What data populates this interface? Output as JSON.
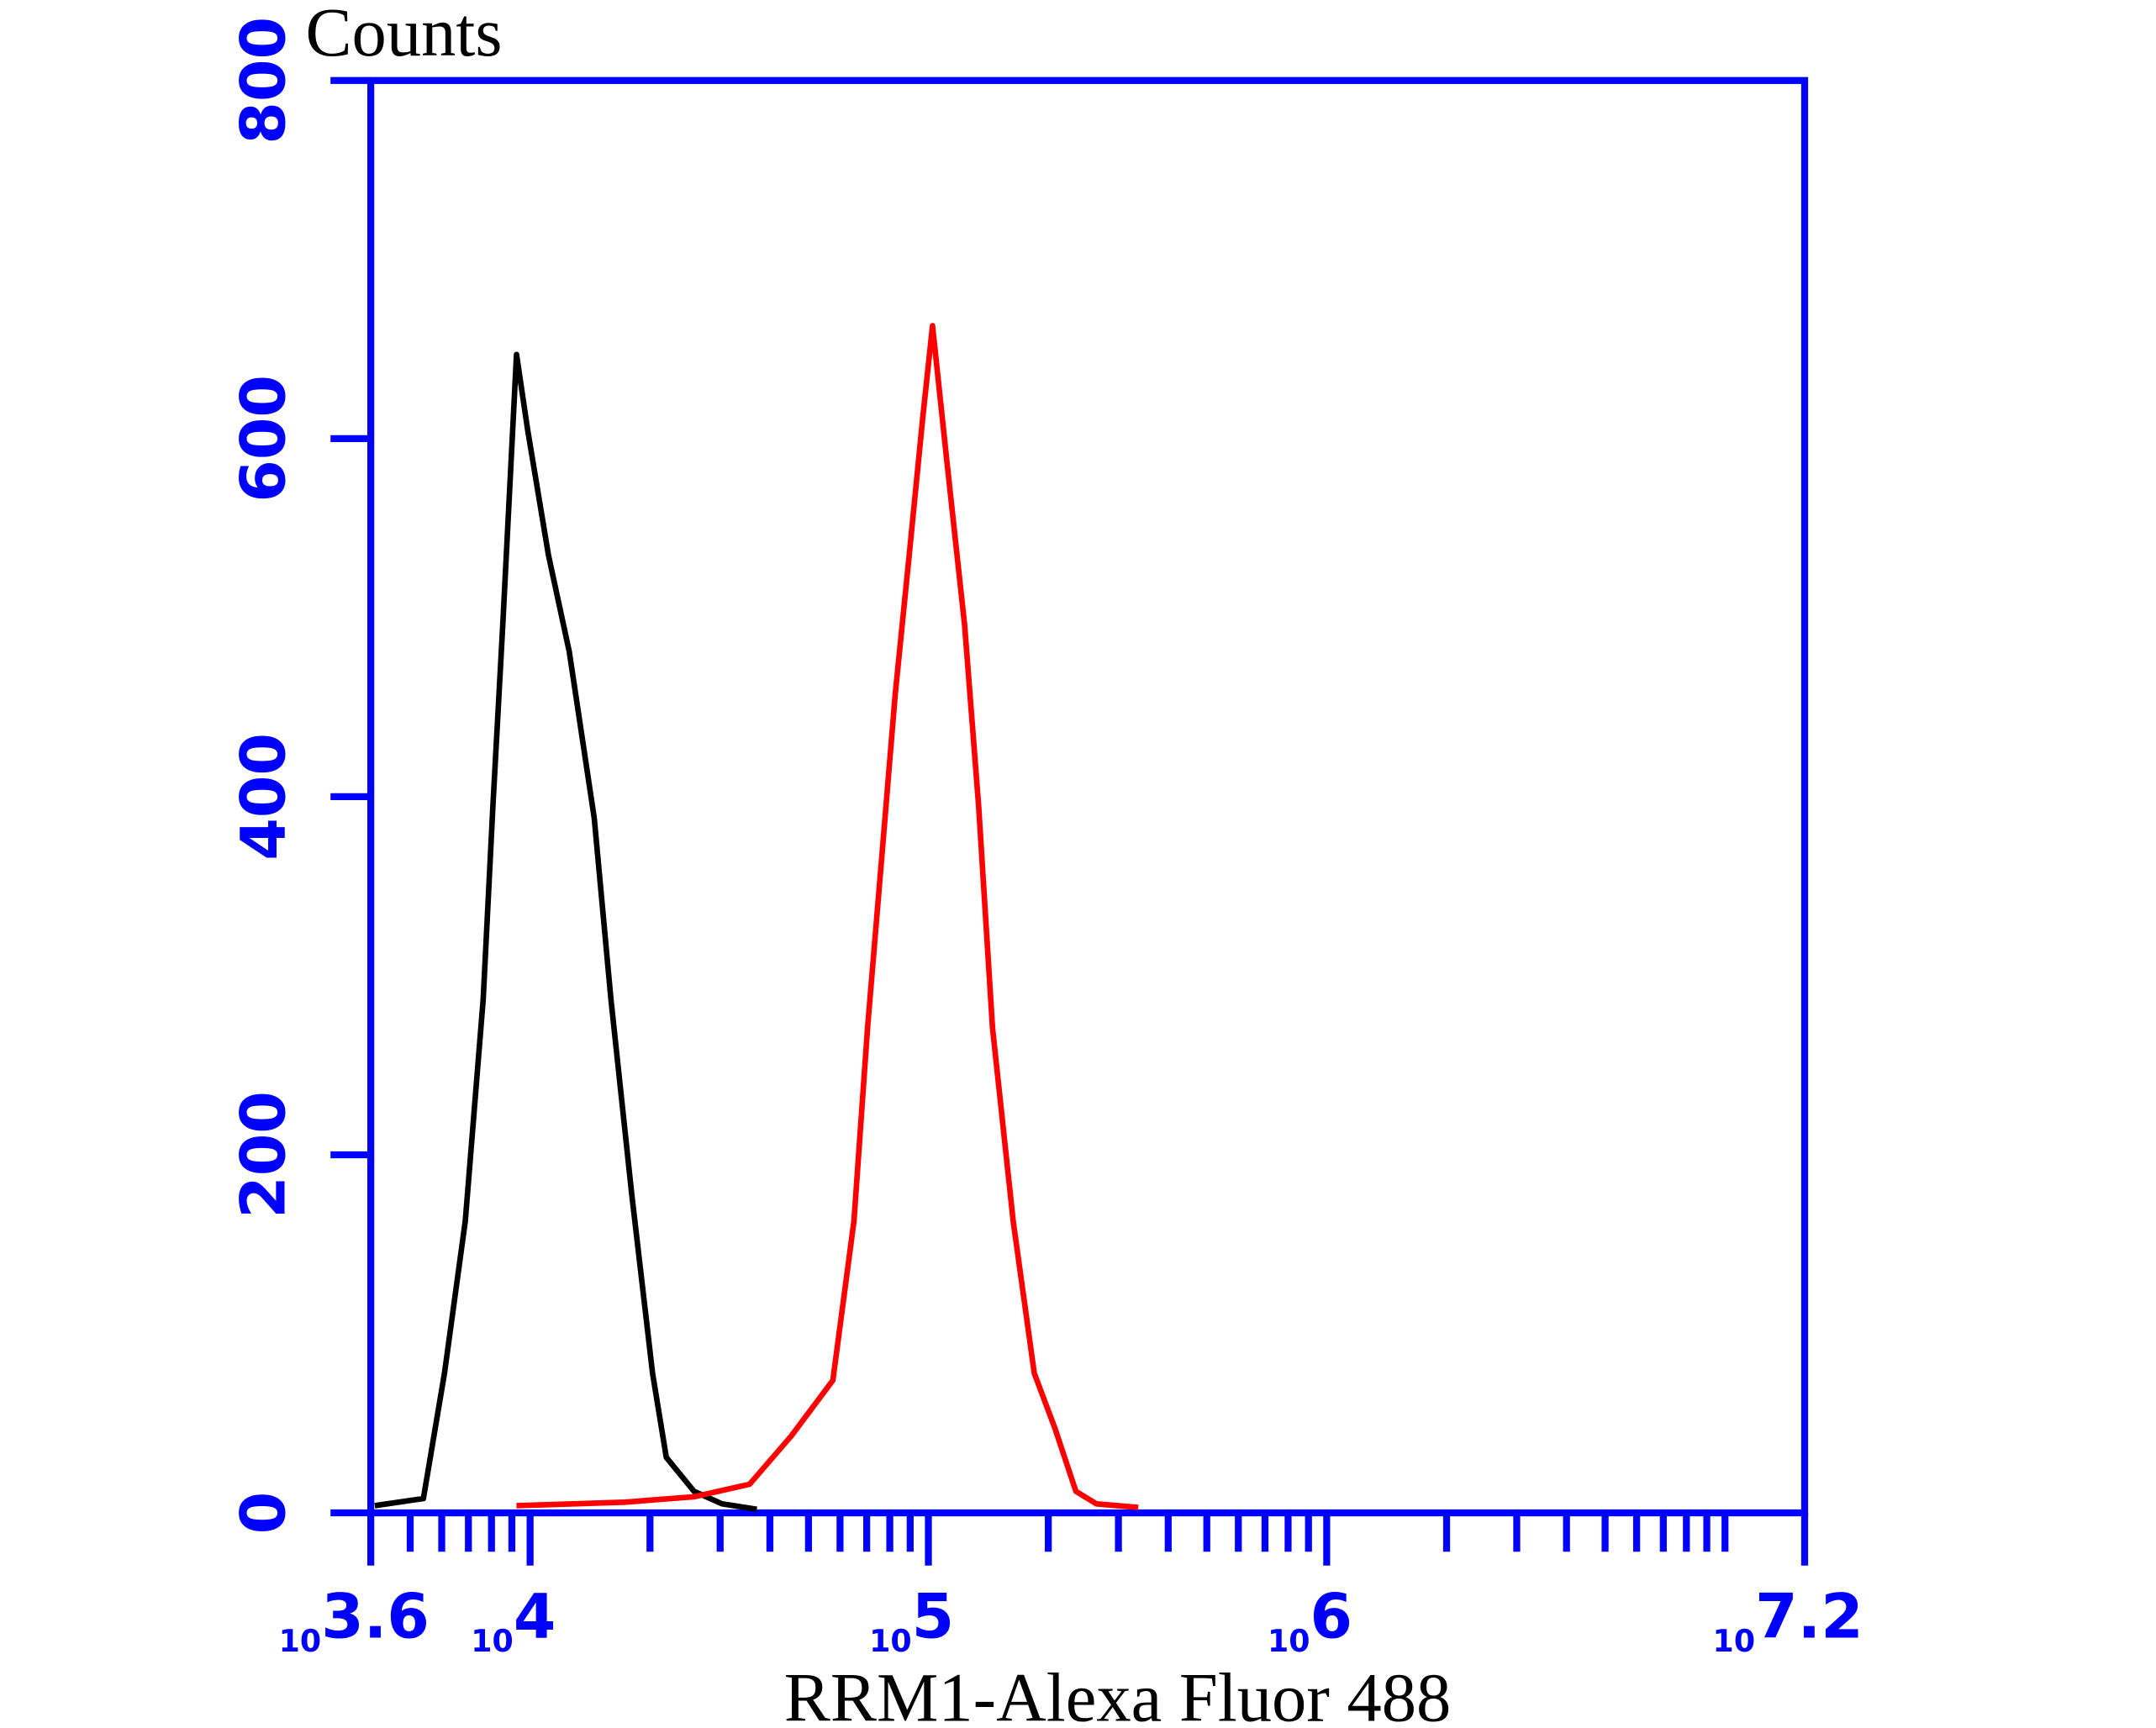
{
  "chart_data": {
    "type": "line",
    "y_label": "Counts",
    "x_label": "RRM1-Alexa Fluor 488",
    "x_log_scale": true,
    "xlim": [
      3981.07,
      15848932
    ],
    "xticks": [
      {
        "value": 3981.07,
        "label": "10",
        "exponent": "3.6"
      },
      {
        "value": 10000,
        "label": "10",
        "exponent": "4"
      },
      {
        "value": 100000,
        "label": "10",
        "exponent": "5"
      },
      {
        "value": 1000000,
        "label": "10",
        "exponent": "6"
      },
      {
        "value": 15848932,
        "label": "10",
        "exponent": "7.2"
      }
    ],
    "xminor_ticks": [
      5000,
      6000,
      7000,
      8000,
      9000,
      20000,
      30000,
      40000,
      50000,
      60000,
      70000,
      80000,
      90000,
      200000,
      300000,
      400000,
      500000,
      600000,
      700000,
      800000,
      900000,
      2000000,
      3000000,
      4000000,
      5000000,
      6000000,
      7000000,
      8000000,
      9000000,
      10000000
    ],
    "ylim": [
      0,
      800
    ],
    "yticks": [
      0,
      200,
      400,
      600,
      800
    ],
    "axis_color": "#0000ff",
    "grid": false,
    "series": [
      {
        "color": "#000000",
        "x": [
          4074,
          5395,
          6095,
          6875,
          7625,
          8069,
          8536,
          9243,
          9861,
          11122,
          12540,
          14490,
          15950,
          17990,
          20290,
          21980,
          25810,
          30330,
          37070
        ],
        "values": [
          4,
          8,
          78,
          163,
          287,
          395,
          496,
          647,
          605,
          535,
          481,
          388,
          287,
          178,
          78,
          31,
          12,
          5,
          2
        ]
      },
      {
        "color": "#ff0000",
        "x": [
          9243,
          17300,
          25810,
          35580,
          45290,
          57560,
          65010,
          70340,
          76210,
          82550,
          89470,
          96830,
          102400,
          111100,
          123300,
          133700,
          144900,
          163300,
          184400,
          208000,
          234600,
          264300,
          336500
        ],
        "values": [
          4,
          6,
          9,
          16,
          43,
          74,
          163,
          271,
          364,
          457,
          535,
          612,
          663,
          589,
          496,
          395,
          271,
          163,
          78,
          47,
          12,
          5,
          3
        ]
      }
    ]
  }
}
